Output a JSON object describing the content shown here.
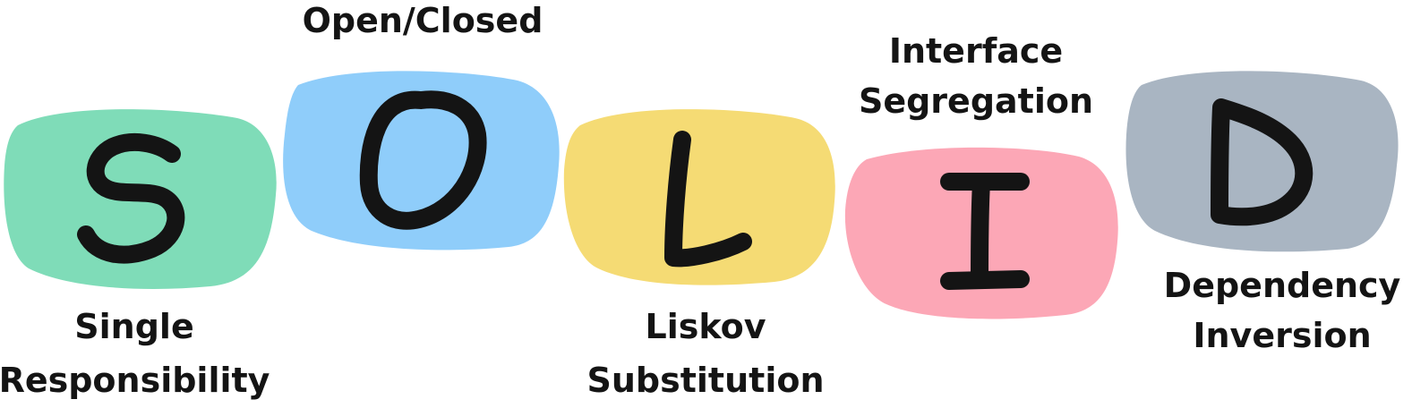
{
  "colors": {
    "s_blob": "#7fdcb8",
    "o_blob": "#8fcdfa",
    "l_blob": "#f5db74",
    "i_blob": "#fca7b6",
    "d_blob": "#a9b5c2",
    "ink": "#141414"
  },
  "principles": [
    {
      "letter": "S",
      "line1": "Single",
      "line2": "Responsibility"
    },
    {
      "letter": "O",
      "line1": "Open/Closed",
      "line2": ""
    },
    {
      "letter": "L",
      "line1": "Liskov",
      "line2": "Substitution"
    },
    {
      "letter": "I",
      "line1": "Interface",
      "line2": "Segregation"
    },
    {
      "letter": "D",
      "line1": "Dependency",
      "line2": "Inversion"
    }
  ]
}
